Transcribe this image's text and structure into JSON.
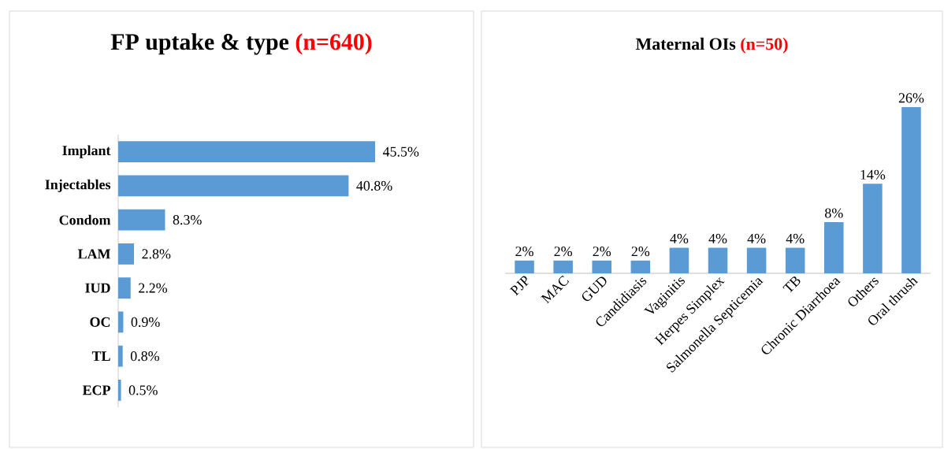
{
  "chart_data": [
    {
      "type": "bar",
      "orientation": "horizontal",
      "title": "FP uptake & type",
      "subtitle": "(n=640)",
      "color": "#5b9bd5",
      "categories": [
        "Implant",
        "Injectables",
        "Condom",
        "LAM",
        "IUD",
        "OC",
        "TL",
        "ECP"
      ],
      "values": [
        45.5,
        40.8,
        8.3,
        2.8,
        2.2,
        0.9,
        0.8,
        0.5
      ],
      "value_labels": [
        "45.5%",
        "40.8%",
        "8.3%",
        "2.8%",
        "2.2%",
        "0.9%",
        "0.8%",
        "0.5%"
      ]
    },
    {
      "type": "bar",
      "title": "Maternal OIs",
      "subtitle": "(n=50)",
      "color": "#5b9bd5",
      "categories": [
        "PJP",
        "MAC",
        "GUD",
        "Candidiasis",
        "Vaginitis",
        "Herpes Simplex",
        "Salmonella Septicemia",
        "TB",
        "Chronic Diarrhoea",
        "Others",
        "Oral thrush"
      ],
      "values": [
        2,
        2,
        2,
        2,
        4,
        4,
        4,
        4,
        8,
        14,
        26
      ],
      "value_labels": [
        "2%",
        "2%",
        "2%",
        "2%",
        "4%",
        "4%",
        "4%",
        "4%",
        "8%",
        "14%",
        "26%"
      ]
    }
  ]
}
